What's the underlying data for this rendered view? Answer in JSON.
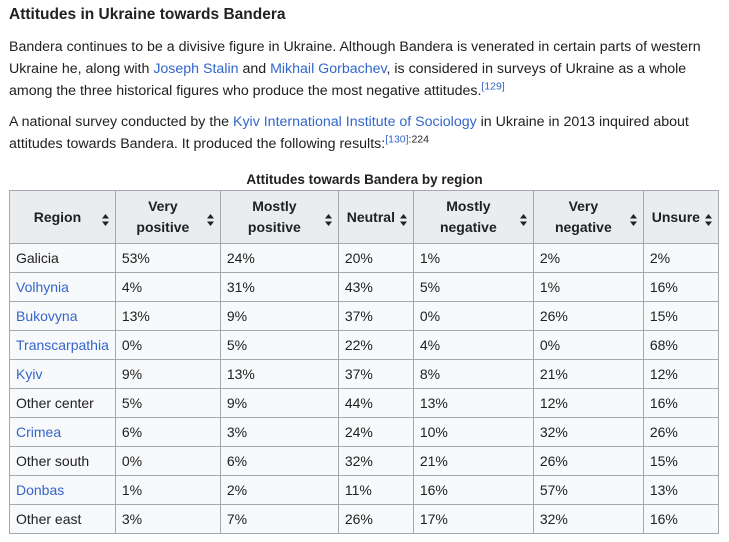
{
  "heading": "Attitudes in Ukraine towards Bandera",
  "paragraph1": {
    "t1": "Bandera continues to be a divisive figure in Ukraine. Although Bandera is venerated in certain parts of western Ukraine he, along with ",
    "link1": "Joseph Stalin",
    "t2": " and ",
    "link2": "Mikhail Gorbachev",
    "t3": ", is considered in surveys of Ukraine as a whole among the three historical figures who produce the most negative attitudes.",
    "ref": "[129]"
  },
  "paragraph2": {
    "t1": "A national survey conducted by the ",
    "link1": "Kyiv International Institute of Sociology",
    "t2": " in Ukraine in 2013 inquired about attitudes towards Bandera. It produced the following results:",
    "ref": "[130]",
    "page": ":224"
  },
  "table": {
    "caption": "Attitudes towards Bandera by region",
    "headers": [
      "Region",
      "Very positive",
      "Mostly positive",
      "Neutral",
      "Mostly negative",
      "Very negative",
      "Unsure"
    ],
    "rows": [
      {
        "region": "Galicia",
        "link": false,
        "values": [
          "53%",
          "24%",
          "20%",
          "1%",
          "2%",
          "2%"
        ]
      },
      {
        "region": "Volhynia",
        "link": true,
        "values": [
          "4%",
          "31%",
          "43%",
          "5%",
          "1%",
          "16%"
        ]
      },
      {
        "region": "Bukovyna",
        "link": true,
        "values": [
          "13%",
          "9%",
          "37%",
          "0%",
          "26%",
          "15%"
        ]
      },
      {
        "region": "Transcarpathia",
        "link": true,
        "values": [
          "0%",
          "5%",
          "22%",
          "4%",
          "0%",
          "68%"
        ]
      },
      {
        "region": "Kyiv",
        "link": true,
        "values": [
          "9%",
          "13%",
          "37%",
          "8%",
          "21%",
          "12%"
        ]
      },
      {
        "region": "Other center",
        "link": false,
        "values": [
          "5%",
          "9%",
          "44%",
          "13%",
          "12%",
          "16%"
        ]
      },
      {
        "region": "Crimea",
        "link": true,
        "values": [
          "6%",
          "3%",
          "24%",
          "10%",
          "32%",
          "26%"
        ]
      },
      {
        "region": "Other south",
        "link": false,
        "values": [
          "0%",
          "6%",
          "32%",
          "21%",
          "26%",
          "15%"
        ]
      },
      {
        "region": "Donbas",
        "link": true,
        "values": [
          "1%",
          "2%",
          "11%",
          "16%",
          "57%",
          "13%"
        ]
      },
      {
        "region": "Other east",
        "link": false,
        "values": [
          "3%",
          "7%",
          "26%",
          "17%",
          "32%",
          "16%"
        ]
      }
    ]
  },
  "colors": {
    "link": "#3366cc",
    "header_bg": "#eaecf0",
    "cell_bg": "#f8f9fa",
    "border": "#a2a9b1"
  },
  "icons": {
    "sort": "sort-updown-icon"
  }
}
